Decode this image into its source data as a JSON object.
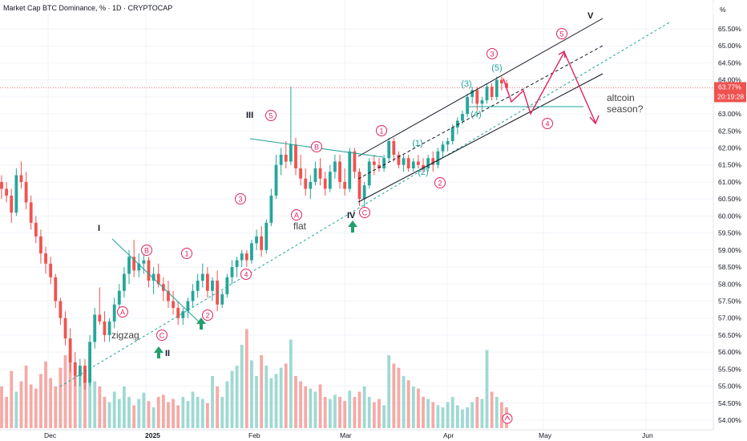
{
  "header": {
    "title": "Market Cap BTC Dominance, % · 1D · CRYPTOCAP",
    "unit_button": "%"
  },
  "chart_data": {
    "type": "candlestick",
    "title": "Market Cap BTC Dominance, % · 1D · CRYPTOCAP",
    "y_unit": "%",
    "ylim": [
      53.85,
      66.0
    ],
    "y_ticks": [
      "54.00%",
      "54.50%",
      "55.00%",
      "55.50%",
      "56.00%",
      "56.50%",
      "57.00%",
      "57.50%",
      "58.00%",
      "58.50%",
      "59.00%",
      "59.50%",
      "60.00%",
      "60.50%",
      "61.00%",
      "61.50%",
      "62.00%",
      "62.50%",
      "63.00%",
      "63.50%",
      "64.00%",
      "64.50%",
      "65.00%",
      "65.50%"
    ],
    "x_ticks": [
      "Dec",
      "2025",
      "Feb",
      "Mar",
      "Apr",
      "May",
      "Jun"
    ],
    "last_price": {
      "value": "63.77%",
      "countdown": "20:19:28"
    },
    "candles": [
      [
        61.0,
        61.2,
        60.5,
        60.8
      ],
      [
        60.8,
        61.0,
        60.4,
        60.6
      ],
      [
        60.6,
        60.8,
        59.8,
        60.1
      ],
      [
        60.1,
        61.4,
        60.0,
        61.2
      ],
      [
        61.2,
        61.6,
        60.8,
        61.0
      ],
      [
        61.0,
        61.3,
        60.2,
        60.4
      ],
      [
        60.4,
        60.6,
        59.6,
        59.8
      ],
      [
        59.8,
        60.0,
        59.2,
        59.4
      ],
      [
        59.4,
        59.6,
        58.6,
        58.9
      ],
      [
        58.9,
        59.1,
        58.3,
        58.6
      ],
      [
        58.6,
        58.8,
        58.0,
        58.2
      ],
      [
        58.2,
        58.3,
        57.3,
        57.5
      ],
      [
        57.5,
        57.6,
        56.8,
        57.0
      ],
      [
        57.0,
        57.2,
        56.2,
        56.4
      ],
      [
        56.4,
        56.7,
        55.4,
        55.7
      ],
      [
        55.7,
        56.0,
        55.0,
        55.3
      ],
      [
        55.3,
        55.8,
        55.0,
        55.6
      ],
      [
        55.6,
        55.8,
        54.9,
        55.1
      ],
      [
        55.1,
        56.5,
        55.0,
        56.3
      ],
      [
        56.3,
        57.3,
        56.1,
        57.1
      ],
      [
        57.1,
        57.9,
        56.8,
        56.9
      ],
      [
        56.9,
        57.2,
        56.3,
        56.5
      ],
      [
        56.5,
        57.0,
        56.3,
        56.9
      ],
      [
        56.9,
        57.6,
        56.7,
        57.4
      ],
      [
        57.4,
        58.0,
        57.2,
        57.8
      ],
      [
        57.8,
        58.5,
        57.6,
        58.3
      ],
      [
        58.3,
        59.0,
        58.0,
        58.8
      ],
      [
        58.8,
        59.3,
        58.2,
        58.4
      ],
      [
        58.4,
        58.9,
        58.2,
        58.6
      ],
      [
        58.6,
        58.9,
        58.3,
        58.7
      ],
      [
        58.7,
        58.8,
        57.9,
        58.1
      ],
      [
        58.1,
        58.5,
        57.7,
        58.3
      ],
      [
        58.3,
        58.6,
        57.9,
        58.0
      ],
      [
        58.0,
        58.2,
        57.5,
        57.8
      ],
      [
        57.8,
        58.1,
        57.3,
        57.5
      ],
      [
        57.5,
        57.8,
        57.1,
        57.3
      ],
      [
        57.3,
        57.5,
        56.8,
        57.0
      ],
      [
        57.0,
        57.3,
        56.8,
        57.2
      ],
      [
        57.2,
        57.6,
        57.0,
        57.5
      ],
      [
        57.5,
        58.0,
        57.3,
        57.8
      ],
      [
        57.8,
        58.3,
        57.6,
        58.1
      ],
      [
        58.1,
        58.6,
        57.9,
        58.3
      ],
      [
        58.3,
        58.5,
        57.6,
        57.8
      ],
      [
        57.8,
        58.2,
        57.5,
        58.1
      ],
      [
        58.1,
        58.4,
        57.2,
        57.4
      ],
      [
        57.4,
        57.8,
        57.3,
        57.7
      ],
      [
        57.7,
        58.3,
        57.6,
        58.2
      ],
      [
        58.2,
        58.7,
        58.0,
        58.5
      ],
      [
        58.5,
        58.8,
        58.2,
        58.7
      ],
      [
        58.7,
        59.0,
        58.5,
        58.9
      ],
      [
        58.9,
        59.0,
        58.5,
        58.7
      ],
      [
        58.7,
        59.3,
        58.6,
        59.2
      ],
      [
        59.2,
        59.6,
        59.0,
        59.4
      ],
      [
        59.4,
        59.7,
        58.8,
        59.0
      ],
      [
        59.0,
        59.9,
        58.9,
        59.8
      ],
      [
        59.8,
        60.8,
        59.7,
        60.6
      ],
      [
        60.6,
        61.8,
        60.5,
        61.5
      ],
      [
        61.5,
        62.0,
        61.2,
        61.8
      ],
      [
        61.8,
        62.2,
        61.4,
        61.6
      ],
      [
        61.6,
        63.8,
        61.5,
        62.1
      ],
      [
        62.1,
        62.3,
        61.2,
        61.4
      ],
      [
        61.4,
        61.8,
        60.9,
        61.1
      ],
      [
        61.1,
        61.4,
        60.6,
        60.8
      ],
      [
        60.8,
        61.2,
        60.5,
        61.0
      ],
      [
        61.0,
        61.6,
        60.9,
        61.4
      ],
      [
        61.4,
        61.7,
        60.9,
        61.1
      ],
      [
        61.1,
        61.3,
        60.6,
        60.8
      ],
      [
        60.8,
        61.5,
        60.7,
        61.3
      ],
      [
        61.3,
        61.8,
        61.1,
        61.6
      ],
      [
        61.6,
        61.8,
        60.8,
        61.0
      ],
      [
        61.0,
        61.4,
        60.6,
        60.8
      ],
      [
        60.8,
        62.0,
        60.7,
        61.9
      ],
      [
        61.9,
        62.0,
        61.1,
        61.3
      ],
      [
        61.3,
        61.4,
        60.3,
        60.5
      ],
      [
        60.5,
        61.0,
        60.2,
        60.9
      ],
      [
        60.9,
        61.7,
        60.8,
        61.6
      ],
      [
        61.6,
        61.8,
        61.2,
        61.5
      ],
      [
        61.5,
        61.7,
        61.3,
        61.4
      ],
      [
        61.4,
        61.8,
        61.3,
        61.7
      ],
      [
        61.7,
        62.3,
        61.6,
        62.2
      ],
      [
        62.2,
        62.3,
        61.6,
        61.8
      ],
      [
        61.8,
        61.9,
        61.4,
        61.5
      ],
      [
        61.5,
        61.8,
        61.3,
        61.7
      ],
      [
        61.7,
        61.8,
        61.3,
        61.4
      ],
      [
        61.4,
        61.7,
        61.3,
        61.6
      ],
      [
        61.6,
        61.8,
        61.4,
        61.5
      ],
      [
        61.5,
        61.7,
        61.3,
        61.4
      ],
      [
        61.4,
        61.8,
        61.3,
        61.7
      ],
      [
        61.7,
        61.9,
        61.3,
        61.5
      ],
      [
        61.5,
        62.0,
        61.4,
        61.9
      ],
      [
        61.9,
        62.2,
        61.7,
        62.1
      ],
      [
        62.1,
        62.3,
        61.9,
        62.2
      ],
      [
        62.2,
        62.7,
        62.1,
        62.6
      ],
      [
        62.6,
        62.9,
        62.4,
        62.8
      ],
      [
        62.8,
        63.1,
        62.7,
        63.0
      ],
      [
        63.0,
        63.6,
        62.9,
        63.5
      ],
      [
        63.5,
        63.8,
        63.3,
        63.7
      ],
      [
        63.7,
        63.8,
        63.1,
        63.3
      ],
      [
        63.3,
        63.5,
        63.1,
        63.4
      ],
      [
        63.4,
        63.9,
        63.3,
        63.8
      ],
      [
        63.8,
        63.9,
        63.4,
        63.5
      ],
      [
        63.5,
        64.1,
        63.4,
        64.0
      ],
      [
        64.0,
        64.1,
        63.7,
        63.9
      ],
      [
        63.9,
        64.0,
        63.7,
        63.77
      ]
    ],
    "volume": [
      0.4,
      0.3,
      0.55,
      0.35,
      0.45,
      0.6,
      0.42,
      0.38,
      0.52,
      0.64,
      0.48,
      0.4,
      0.58,
      0.7,
      0.65,
      0.5,
      0.55,
      0.6,
      0.72,
      0.45,
      0.4,
      0.3,
      0.25,
      0.35,
      0.28,
      0.4,
      0.3,
      0.22,
      0.28,
      0.34,
      0.26,
      0.2,
      0.3,
      0.32,
      0.25,
      0.28,
      0.22,
      0.3,
      0.26,
      0.35,
      0.3,
      0.28,
      0.24,
      0.5,
      0.4,
      0.3,
      0.45,
      0.55,
      0.6,
      0.8,
      0.95,
      0.65,
      0.5,
      0.7,
      0.6,
      0.48,
      0.52,
      0.58,
      0.62,
      0.85,
      0.5,
      0.45,
      0.4,
      0.38,
      0.35,
      0.42,
      0.3,
      0.28,
      0.32,
      0.3,
      0.26,
      0.36,
      0.3,
      0.35,
      0.4,
      0.3,
      0.25,
      0.28,
      0.22,
      0.7,
      0.62,
      0.58,
      0.5,
      0.46,
      0.4,
      0.38,
      0.3,
      0.28,
      0.25,
      0.22,
      0.2,
      0.25,
      0.3,
      0.22,
      0.18,
      0.2,
      0.25,
      0.3,
      0.28,
      0.75,
      0.35,
      0.3,
      0.25,
      0.2
    ],
    "wave_labels": [
      {
        "text": "I",
        "style": "big"
      },
      {
        "text": "II",
        "style": "big"
      },
      {
        "text": "III",
        "style": "big"
      },
      {
        "text": "IV",
        "style": "big"
      },
      {
        "text": "V",
        "style": "big"
      },
      {
        "text": "A",
        "style": "red"
      },
      {
        "text": "B",
        "style": "red"
      },
      {
        "text": "C",
        "style": "red"
      },
      {
        "text": "1",
        "style": "red"
      },
      {
        "text": "2",
        "style": "red"
      },
      {
        "text": "3",
        "style": "red"
      },
      {
        "text": "4",
        "style": "red"
      },
      {
        "text": "5",
        "style": "red"
      },
      {
        "text": "A",
        "style": "red"
      },
      {
        "text": "B",
        "style": "red"
      },
      {
        "text": "C",
        "style": "red"
      },
      {
        "text": "1",
        "style": "red"
      },
      {
        "text": "2",
        "style": "red"
      },
      {
        "text": "3",
        "style": "red"
      },
      {
        "text": "4",
        "style": "red"
      },
      {
        "text": "5",
        "style": "red"
      },
      {
        "text": "(1)",
        "style": "teal"
      },
      {
        "text": "(2)",
        "style": "teal"
      },
      {
        "text": "(3)",
        "style": "teal"
      },
      {
        "text": "(4)",
        "style": "teal"
      },
      {
        "text": "(5)",
        "style": "teal"
      }
    ],
    "annotations": [
      {
        "text": "zigzag"
      },
      {
        "text": "flat"
      },
      {
        "text": "altcoin"
      },
      {
        "text": "season?"
      }
    ],
    "colors": {
      "up": "#26a69a",
      "down": "#ef5350",
      "volume_up": "#9fd9d3",
      "volume_down": "#f6a9a6",
      "wave_red": "#e0245e",
      "wave_teal": "#1fa39a",
      "arrow": "#e0245e",
      "channel": "#131722",
      "trendline": "#1fa39a",
      "marker": "#22a06b"
    }
  }
}
